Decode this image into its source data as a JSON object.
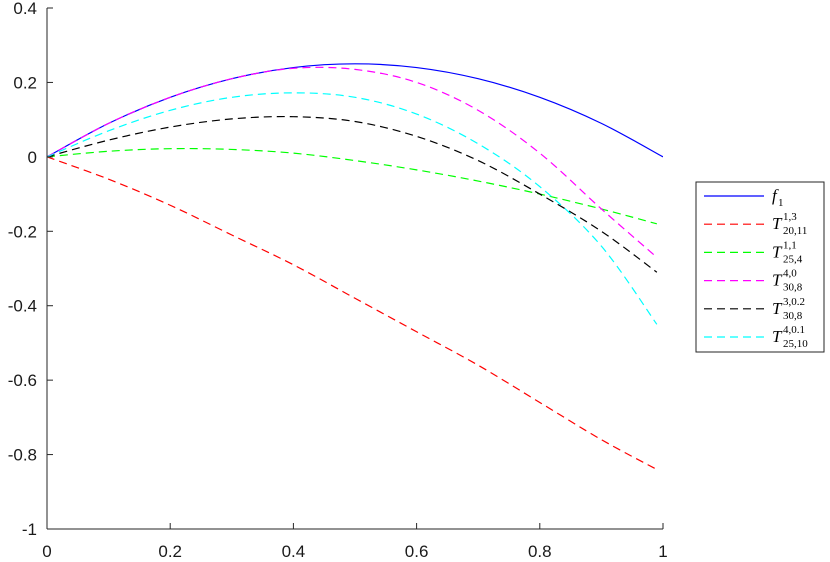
{
  "chart_data": {
    "type": "line",
    "title": "",
    "xlabel": "",
    "ylabel": "",
    "xlim": [
      0,
      1
    ],
    "ylim": [
      -1,
      0.4
    ],
    "xticks": [
      0,
      0.2,
      0.4,
      0.6,
      0.8,
      1
    ],
    "xtick_labels": [
      "0",
      "0.2",
      "0.4",
      "0.6",
      "0.8",
      "1"
    ],
    "yticks": [
      -1,
      -0.8,
      -0.6,
      -0.4,
      -0.2,
      0,
      0.2,
      0.4
    ],
    "ytick_labels": [
      "-1",
      "-0.8",
      "-0.6",
      "-0.4",
      "-0.2",
      "0",
      "0.2",
      "0.4"
    ],
    "grid": false,
    "legend_position": "right",
    "series": [
      {
        "legend": {
          "base": "f",
          "sub": "1",
          "sup": ""
        },
        "color": "#0000ff",
        "style": "solid",
        "x": [
          0,
          0.1,
          0.2,
          0.3,
          0.4,
          0.5,
          0.6,
          0.7,
          0.8,
          0.9,
          1.0
        ],
        "y": [
          0,
          0.09,
          0.16,
          0.21,
          0.24,
          0.25,
          0.24,
          0.21,
          0.16,
          0.09,
          0
        ]
      },
      {
        "legend": {
          "base": "T",
          "sub": "20,11",
          "sup": "1,3"
        },
        "color": "#ff0000",
        "style": "dashed",
        "x": [
          0,
          0.1,
          0.2,
          0.3,
          0.4,
          0.5,
          0.6,
          0.7,
          0.8,
          0.9,
          0.99
        ],
        "y": [
          0,
          -0.06,
          -0.13,
          -0.21,
          -0.29,
          -0.38,
          -0.47,
          -0.56,
          -0.66,
          -0.76,
          -0.84
        ]
      },
      {
        "legend": {
          "base": "T",
          "sub": "25,4",
          "sup": "1,1"
        },
        "color": "#00ff00",
        "style": "dashed",
        "x": [
          0,
          0.1,
          0.2,
          0.3,
          0.4,
          0.5,
          0.6,
          0.7,
          0.8,
          0.9,
          0.99
        ],
        "y": [
          0,
          0.015,
          0.022,
          0.02,
          0.01,
          -0.01,
          -0.035,
          -0.065,
          -0.1,
          -0.14,
          -0.18
        ]
      },
      {
        "legend": {
          "base": "T",
          "sub": "30,8",
          "sup": "4,0"
        },
        "color": "#ff00ff",
        "style": "dashed",
        "x": [
          0,
          0.1,
          0.2,
          0.3,
          0.4,
          0.5,
          0.6,
          0.7,
          0.8,
          0.9,
          0.99
        ],
        "y": [
          0,
          0.09,
          0.16,
          0.21,
          0.238,
          0.235,
          0.2,
          0.125,
          0.01,
          -0.14,
          -0.27
        ]
      },
      {
        "legend": {
          "base": "T",
          "sub": "30,8",
          "sup": "3,0.2"
        },
        "color": "#000000",
        "style": "dashed",
        "x": [
          0,
          0.1,
          0.2,
          0.3,
          0.4,
          0.5,
          0.6,
          0.7,
          0.8,
          0.9,
          0.99
        ],
        "y": [
          0,
          0.045,
          0.08,
          0.102,
          0.108,
          0.095,
          0.055,
          -0.01,
          -0.1,
          -0.2,
          -0.31
        ]
      },
      {
        "legend": {
          "base": "T",
          "sub": "25,10",
          "sup": "4,0.1"
        },
        "color": "#00ffff",
        "style": "dashed",
        "x": [
          0,
          0.1,
          0.2,
          0.3,
          0.4,
          0.5,
          0.6,
          0.7,
          0.8,
          0.9,
          0.99
        ],
        "y": [
          0,
          0.07,
          0.125,
          0.16,
          0.172,
          0.16,
          0.115,
          0.035,
          -0.08,
          -0.24,
          -0.45
        ]
      }
    ]
  }
}
